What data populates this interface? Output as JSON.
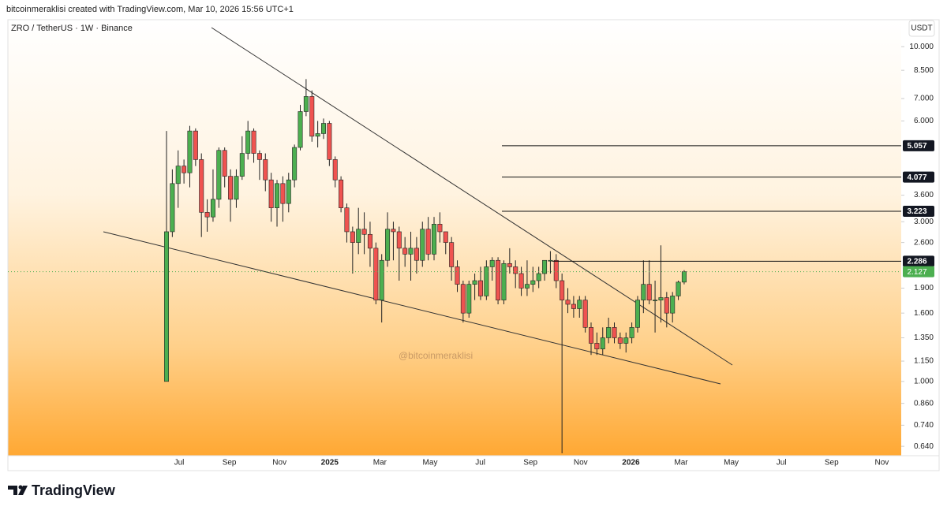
{
  "header": {
    "text": "bitcoinmeraklisi created with TradingView.com, Mar 10, 2026 15:56 UTC+1"
  },
  "chart_data": {
    "type": "candlestick",
    "symbol": "ZRO / TetherUS · 1W · Binance",
    "currency": "USDT",
    "watermark": "@bitcoinmeraklisi",
    "log_scale": true,
    "up_color": "#4caf50",
    "down_color": "#ef5350",
    "ylim": [
      0.61,
      10.8
    ],
    "yticks": [
      {
        "value": 10,
        "label": "10.000"
      },
      {
        "value": 8.5,
        "label": "8.500"
      },
      {
        "value": 7,
        "label": "7.000"
      },
      {
        "value": 6,
        "label": "6.000"
      },
      {
        "value": 3.6,
        "label": "3.600"
      },
      {
        "value": 3,
        "label": "3.000"
      },
      {
        "value": 2.6,
        "label": "2.600"
      },
      {
        "value": 1.9,
        "label": "1.900"
      },
      {
        "value": 1.6,
        "label": "1.600"
      },
      {
        "value": 1.35,
        "label": "1.350"
      },
      {
        "value": 1.15,
        "label": "1.150"
      },
      {
        "value": 1,
        "label": "1.000"
      },
      {
        "value": 0.86,
        "label": "0.860"
      },
      {
        "value": 0.74,
        "label": "0.740"
      },
      {
        "value": 0.64,
        "label": "0.640"
      }
    ],
    "time_labels": [
      "Jul",
      "Sep",
      "Nov",
      "2025",
      "Mar",
      "May",
      "Jul",
      "Sep",
      "Nov",
      "2026",
      "Mar",
      "May",
      "Jul",
      "Sep",
      "Nov"
    ],
    "open": [
      1.0,
      2.8,
      3.9,
      4.4,
      4.2,
      5.6,
      4.6,
      3.2,
      3.1,
      3.5,
      4.9,
      4.1,
      3.5,
      4.1,
      4.8,
      5.6,
      4.8,
      4.6,
      4.0,
      3.3,
      3.9,
      3.4,
      4.0,
      5.0,
      6.4,
      7.1,
      5.4,
      5.5,
      5.9,
      4.6,
      4.0,
      3.3,
      2.8,
      2.6,
      2.85,
      2.75,
      2.5,
      1.75,
      2.3,
      2.85,
      2.8,
      2.5,
      2.4,
      2.5,
      2.3,
      2.85,
      2.4,
      2.95,
      2.8,
      2.6,
      2.2,
      1.95,
      1.6,
      1.95,
      2.0,
      1.8,
      2.2,
      2.3,
      1.75,
      2.25,
      2.2,
      2.1,
      1.9,
      1.95,
      2.0,
      2.1,
      2.3,
      2.3,
      2.0,
      1.75,
      1.7,
      1.65,
      1.75,
      1.45,
      1.3,
      1.25,
      1.35,
      1.45,
      1.35,
      1.3,
      1.35,
      1.45,
      1.75,
      1.95,
      1.75,
      1.75,
      1.78,
      1.6,
      1.8,
      1.98
    ],
    "high": [
      5.6,
      4.3,
      4.9,
      4.6,
      5.8,
      5.7,
      4.8,
      3.5,
      4.3,
      5.0,
      5.0,
      4.3,
      4.3,
      5.4,
      6.0,
      5.7,
      4.9,
      4.8,
      4.2,
      4.0,
      4.1,
      4.2,
      5.1,
      6.7,
      8.0,
      7.4,
      6.0,
      6.1,
      6.0,
      4.7,
      4.1,
      3.4,
      2.9,
      3.3,
      3.2,
      3.0,
      2.6,
      2.4,
      3.2,
      3.0,
      2.9,
      2.7,
      2.8,
      2.7,
      3.0,
      3.1,
      3.1,
      3.2,
      2.8,
      2.7,
      2.3,
      2.0,
      2.0,
      2.1,
      2.2,
      2.3,
      2.35,
      2.35,
      2.3,
      2.5,
      2.3,
      2.2,
      2.3,
      2.2,
      2.2,
      2.3,
      2.45,
      2.4,
      2.1,
      1.9,
      1.8,
      1.8,
      1.8,
      1.5,
      1.4,
      1.45,
      1.55,
      1.5,
      1.4,
      1.4,
      1.5,
      1.8,
      2.3,
      2.3,
      2.0,
      2.55,
      1.85,
      1.85,
      2.0,
      2.15
    ],
    "low": [
      1.0,
      2.7,
      3.3,
      3.9,
      3.8,
      4.4,
      2.7,
      2.8,
      3.0,
      3.3,
      3.8,
      3.0,
      3.3,
      4.0,
      4.6,
      4.5,
      4.0,
      3.7,
      3.0,
      2.9,
      3.0,
      3.2,
      3.8,
      4.9,
      6.2,
      5.2,
      5.0,
      5.3,
      4.4,
      3.8,
      3.2,
      2.6,
      2.1,
      2.4,
      2.4,
      2.2,
      1.7,
      1.5,
      2.2,
      2.3,
      2.0,
      2.2,
      2.0,
      2.1,
      2.2,
      2.3,
      2.3,
      2.6,
      2.4,
      2.0,
      1.85,
      1.5,
      1.55,
      1.75,
      1.75,
      1.75,
      2.0,
      1.7,
      1.7,
      2.1,
      1.9,
      1.8,
      1.8,
      1.85,
      1.9,
      2.0,
      2.1,
      1.9,
      0.61,
      1.6,
      1.55,
      1.55,
      1.4,
      1.2,
      1.2,
      1.2,
      1.3,
      1.3,
      1.25,
      1.22,
      1.3,
      1.4,
      1.6,
      1.7,
      1.4,
      1.5,
      1.45,
      1.5,
      1.75,
      1.95
    ],
    "close": [
      2.8,
      3.9,
      4.4,
      4.2,
      5.6,
      4.6,
      3.2,
      3.1,
      3.5,
      4.9,
      4.1,
      3.5,
      4.1,
      4.8,
      5.6,
      4.8,
      4.6,
      4.0,
      3.3,
      3.9,
      3.4,
      4.0,
      5.0,
      6.4,
      7.1,
      5.4,
      5.5,
      5.9,
      4.6,
      4.0,
      3.3,
      2.8,
      2.6,
      2.85,
      2.75,
      2.5,
      1.75,
      2.3,
      2.85,
      2.8,
      2.5,
      2.4,
      2.5,
      2.3,
      2.85,
      2.4,
      2.95,
      2.8,
      2.6,
      2.2,
      1.95,
      1.6,
      1.95,
      2.0,
      1.8,
      2.2,
      2.3,
      1.75,
      2.25,
      2.2,
      2.1,
      1.9,
      1.95,
      2.0,
      2.1,
      2.3,
      2.3,
      2.0,
      1.75,
      1.7,
      1.65,
      1.75,
      1.45,
      1.3,
      1.25,
      1.35,
      1.45,
      1.35,
      1.3,
      1.35,
      1.45,
      1.75,
      1.95,
      1.75,
      1.75,
      1.78,
      1.6,
      1.8,
      1.98,
      2.127
    ],
    "price_lines": [
      5.057,
      4.077,
      3.223,
      2.286
    ],
    "last_price": 2.127
  },
  "footer": {
    "brand": "TradingView"
  }
}
